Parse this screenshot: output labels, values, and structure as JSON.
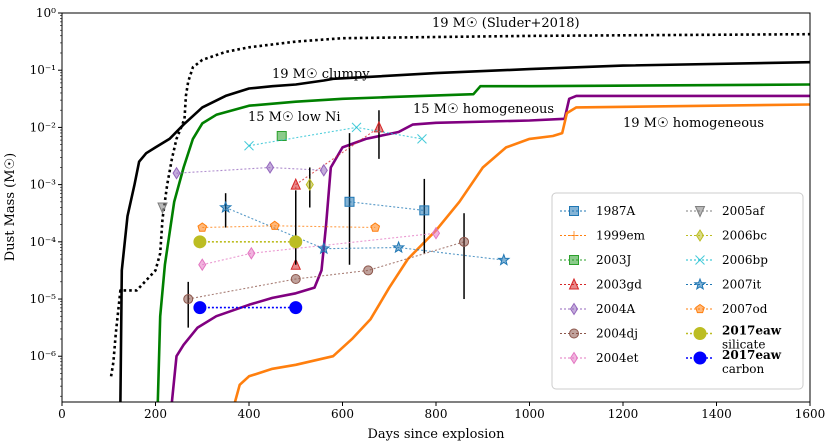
{
  "chart_data": {
    "type": "line",
    "title": "",
    "xlabel": "Days since explosion",
    "ylabel": "Dust Mass (M☉)",
    "xlim": [
      0,
      1600
    ],
    "ylim_log10": [
      -6.8,
      0
    ],
    "x_ticks": [
      0,
      200,
      400,
      600,
      800,
      1000,
      1200,
      1400,
      1600
    ],
    "y_ticks": [
      {
        "exp": 0,
        "label": "10⁰"
      },
      {
        "exp": -1,
        "label": "10⁻¹"
      },
      {
        "exp": -2,
        "label": "10⁻²"
      },
      {
        "exp": -3,
        "label": "10⁻³"
      },
      {
        "exp": -4,
        "label": "10⁻⁴"
      },
      {
        "exp": -5,
        "label": "10⁻⁵"
      },
      {
        "exp": -6,
        "label": "10⁻⁶"
      }
    ],
    "model_curves": [
      {
        "name": "19 M☉ (Sluder+2018)",
        "color": "#000000",
        "dash": "dotted",
        "points": [
          [
            105,
            -6.35
          ],
          [
            110,
            -6.1
          ],
          [
            115,
            -5.6
          ],
          [
            125,
            -4.85
          ],
          [
            160,
            -4.85
          ],
          [
            200,
            -4.5
          ],
          [
            210,
            -4.2
          ],
          [
            215,
            -3.6
          ],
          [
            225,
            -3.0
          ],
          [
            235,
            -2.55
          ],
          [
            245,
            -2.2
          ],
          [
            255,
            -2.0
          ],
          [
            262,
            -1.85
          ],
          [
            265,
            -1.45
          ],
          [
            270,
            -1.2
          ],
          [
            280,
            -0.95
          ],
          [
            300,
            -0.82
          ],
          [
            350,
            -0.68
          ],
          [
            400,
            -0.6
          ],
          [
            500,
            -0.5
          ],
          [
            600,
            -0.44
          ],
          [
            800,
            -0.42
          ],
          [
            1000,
            -0.4
          ],
          [
            1200,
            -0.39
          ],
          [
            1600,
            -0.37
          ]
        ]
      },
      {
        "name": "19 M☉ clumpy",
        "color": "#000000",
        "dash": "solid",
        "points": [
          [
            125,
            -6.8
          ],
          [
            128,
            -4.5
          ],
          [
            140,
            -3.55
          ],
          [
            155,
            -3.0
          ],
          [
            165,
            -2.6
          ],
          [
            180,
            -2.45
          ],
          [
            200,
            -2.35
          ],
          [
            230,
            -2.2
          ],
          [
            260,
            -1.95
          ],
          [
            300,
            -1.65
          ],
          [
            350,
            -1.45
          ],
          [
            400,
            -1.32
          ],
          [
            450,
            -1.28
          ],
          [
            500,
            -1.25
          ],
          [
            560,
            -1.18
          ],
          [
            580,
            -1.15
          ],
          [
            650,
            -1.12
          ],
          [
            800,
            -1.05
          ],
          [
            1000,
            -0.98
          ],
          [
            1200,
            -0.92
          ],
          [
            1600,
            -0.86
          ]
        ]
      },
      {
        "name": "15 M☉ low Ni",
        "color": "#008000",
        "dash": "solid",
        "points": [
          [
            205,
            -6.8
          ],
          [
            210,
            -5.3
          ],
          [
            220,
            -4.4
          ],
          [
            240,
            -3.3
          ],
          [
            260,
            -2.7
          ],
          [
            280,
            -2.2
          ],
          [
            300,
            -1.93
          ],
          [
            330,
            -1.78
          ],
          [
            400,
            -1.62
          ],
          [
            500,
            -1.55
          ],
          [
            600,
            -1.5
          ],
          [
            700,
            -1.47
          ],
          [
            880,
            -1.42
          ],
          [
            895,
            -1.28
          ],
          [
            1000,
            -1.28
          ],
          [
            1600,
            -1.25
          ]
        ]
      },
      {
        "name": "15 M☉ homogeneous",
        "color": "#800080",
        "dash": "solid",
        "points": [
          [
            235,
            -6.8
          ],
          [
            245,
            -6.0
          ],
          [
            260,
            -5.8
          ],
          [
            290,
            -5.5
          ],
          [
            330,
            -5.3
          ],
          [
            400,
            -5.1
          ],
          [
            450,
            -4.98
          ],
          [
            500,
            -4.9
          ],
          [
            540,
            -4.8
          ],
          [
            555,
            -4.5
          ],
          [
            565,
            -3.7
          ],
          [
            575,
            -2.7
          ],
          [
            600,
            -2.35
          ],
          [
            650,
            -2.2
          ],
          [
            720,
            -2.08
          ],
          [
            750,
            -1.95
          ],
          [
            800,
            -1.92
          ],
          [
            1000,
            -1.88
          ],
          [
            1075,
            -1.85
          ],
          [
            1085,
            -1.5
          ],
          [
            1100,
            -1.45
          ],
          [
            1600,
            -1.45
          ]
        ]
      },
      {
        "name": "19 M☉ homogeneous",
        "color": "#ff7f0e",
        "dash": "solid",
        "points": [
          [
            370,
            -6.8
          ],
          [
            380,
            -6.5
          ],
          [
            400,
            -6.35
          ],
          [
            450,
            -6.22
          ],
          [
            500,
            -6.15
          ],
          [
            580,
            -6.0
          ],
          [
            620,
            -5.7
          ],
          [
            660,
            -5.35
          ],
          [
            700,
            -4.8
          ],
          [
            740,
            -4.3
          ],
          [
            800,
            -3.8
          ],
          [
            850,
            -3.3
          ],
          [
            900,
            -2.7
          ],
          [
            950,
            -2.35
          ],
          [
            1000,
            -2.2
          ],
          [
            1050,
            -2.15
          ],
          [
            1070,
            -2.1
          ],
          [
            1080,
            -1.75
          ],
          [
            1100,
            -1.65
          ],
          [
            1600,
            -1.6
          ]
        ]
      }
    ],
    "curve_labels": [
      {
        "text": "19 M☉ (Sluder+2018)",
        "color": "#000000"
      },
      {
        "text": "19 M☉ clumpy",
        "color": "#000000"
      },
      {
        "text": "15 M☉ low Ni",
        "color": "#008000"
      },
      {
        "text": "15 M☉ homogeneous",
        "color": "#800080"
      },
      {
        "text": "19 M☉ homogeneous",
        "color": "#ff7f0e"
      }
    ],
    "series": [
      {
        "name": "1987A",
        "color": "#1f77b4",
        "marker": "square",
        "points": [
          [
            615,
            -3.3
          ],
          [
            775,
            -3.45
          ]
        ],
        "errorbars": [
          [
            615,
            -4.4,
            -2.1
          ],
          [
            775,
            -4.2,
            -2.9
          ]
        ]
      },
      {
        "name": "1999em",
        "color": "#ff7f0e",
        "marker": "plus",
        "points": []
      },
      {
        "name": "2003J",
        "color": "#2ca02c",
        "marker": "square",
        "points": [
          [
            470,
            -2.15
          ]
        ]
      },
      {
        "name": "2003gd",
        "color": "#d62728",
        "marker": "triangle-up",
        "points": [
          [
            500,
            -4.4
          ],
          [
            500,
            -3.0
          ],
          [
            678,
            -2.0
          ]
        ],
        "errorbars": [
          [
            678,
            -2.55,
            -1.7
          ]
        ]
      },
      {
        "name": "2004A",
        "color": "#9467bd",
        "marker": "diamond",
        "points": [
          [
            245,
            -2.8
          ],
          [
            445,
            -2.7
          ],
          [
            560,
            -2.75
          ]
        ]
      },
      {
        "name": "2004dj",
        "color": "#8c564b",
        "marker": "circle",
        "points": [
          [
            270,
            -5.0
          ],
          [
            500,
            -4.65
          ],
          [
            655,
            -4.5
          ],
          [
            860,
            -4.0
          ]
        ],
        "errorbars": [
          [
            270,
            -5.5,
            -4.7
          ],
          [
            860,
            -5.0,
            -3.5
          ]
        ]
      },
      {
        "name": "2004et",
        "color": "#e377c2",
        "marker": "diamond",
        "points": [
          [
            300,
            -4.4
          ],
          [
            405,
            -4.2
          ],
          [
            800,
            -3.85
          ]
        ]
      },
      {
        "name": "2005af",
        "color": "#7f7f7f",
        "marker": "triangle-down",
        "points": [
          [
            215,
            -3.4
          ]
        ]
      },
      {
        "name": "2006bc",
        "color": "#bcbd22",
        "marker": "diamond",
        "points": [
          [
            530,
            -3.0
          ]
        ],
        "errorbars": [
          [
            530,
            -3.4,
            -2.7
          ]
        ]
      },
      {
        "name": "2006bp",
        "color": "#17becf",
        "marker": "x",
        "points": [
          [
            400,
            -2.32
          ],
          [
            630,
            -2.0
          ],
          [
            770,
            -2.2
          ]
        ]
      },
      {
        "name": "2007it",
        "color": "#1f77b4",
        "marker": "star",
        "points": [
          [
            350,
            -3.4
          ],
          [
            560,
            -4.12
          ],
          [
            720,
            -4.1
          ],
          [
            945,
            -4.32
          ]
        ],
        "errorbars": [
          [
            350,
            -3.75,
            -3.15
          ]
        ]
      },
      {
        "name": "2007od",
        "color": "#ff7f0e",
        "marker": "pentagon",
        "points": [
          [
            300,
            -3.75
          ],
          [
            455,
            -3.72
          ],
          [
            670,
            -3.75
          ]
        ]
      },
      {
        "name": "2017eaw",
        "subname": "silicate",
        "color": "#bcbd22",
        "marker": "big-circle",
        "points": [
          [
            295,
            -4.0
          ],
          [
            500,
            -4.0
          ]
        ],
        "errorbars": [
          [
            500,
            -4.4,
            -3.1
          ]
        ]
      },
      {
        "name": "2017eaw",
        "subname": "carbon",
        "color": "#0000ff",
        "marker": "big-circle",
        "points": [
          [
            295,
            -5.15
          ],
          [
            500,
            -5.15
          ]
        ]
      }
    ]
  }
}
